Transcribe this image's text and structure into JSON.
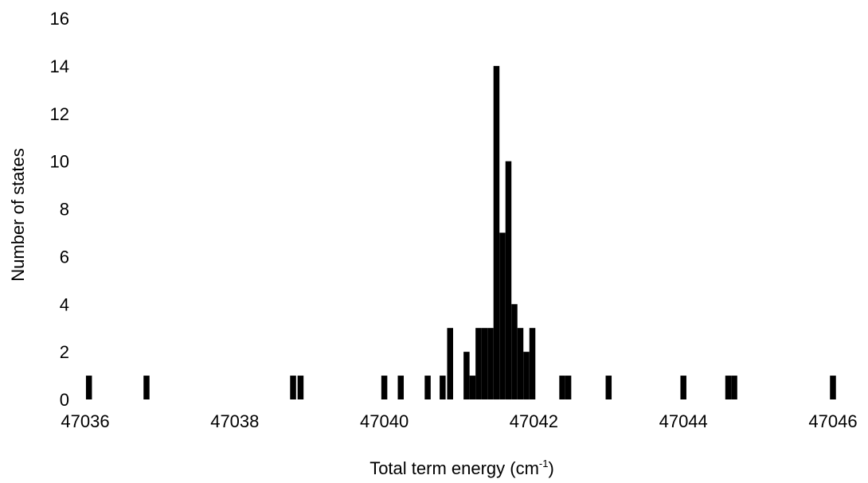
{
  "chart_data": {
    "type": "bar",
    "title": "",
    "xlabel": "Total term energy (cm",
    "xlabel_sup": "-1",
    "xlabel_close": ")",
    "ylabel": "Number of states",
    "xlim": [
      47036,
      47046
    ],
    "ylim": [
      0,
      16
    ],
    "xticks": [
      "47036",
      "47038",
      "47040",
      "47042",
      "47044",
      "47046"
    ],
    "yticks": [
      "0",
      "2",
      "4",
      "6",
      "8",
      "10",
      "12",
      "14",
      "16"
    ],
    "bar_width": 0.08,
    "bars": [
      {
        "x": 47036.05,
        "y": 1
      },
      {
        "x": 47036.82,
        "y": 1
      },
      {
        "x": 47038.78,
        "y": 1
      },
      {
        "x": 47038.88,
        "y": 1
      },
      {
        "x": 47040.0,
        "y": 1
      },
      {
        "x": 47040.22,
        "y": 1
      },
      {
        "x": 47040.58,
        "y": 1
      },
      {
        "x": 47040.78,
        "y": 1
      },
      {
        "x": 47040.88,
        "y": 3
      },
      {
        "x": 47041.1,
        "y": 2
      },
      {
        "x": 47041.18,
        "y": 1
      },
      {
        "x": 47041.26,
        "y": 3
      },
      {
        "x": 47041.34,
        "y": 3
      },
      {
        "x": 47041.42,
        "y": 3
      },
      {
        "x": 47041.5,
        "y": 14
      },
      {
        "x": 47041.58,
        "y": 7
      },
      {
        "x": 47041.66,
        "y": 10
      },
      {
        "x": 47041.74,
        "y": 4
      },
      {
        "x": 47041.82,
        "y": 3
      },
      {
        "x": 47041.9,
        "y": 2
      },
      {
        "x": 47041.98,
        "y": 3
      },
      {
        "x": 47042.38,
        "y": 1
      },
      {
        "x": 47042.46,
        "y": 1
      },
      {
        "x": 47043.0,
        "y": 1
      },
      {
        "x": 47044.0,
        "y": 1
      },
      {
        "x": 47044.6,
        "y": 1
      },
      {
        "x": 47044.68,
        "y": 1
      },
      {
        "x": 47046.0,
        "y": 1
      }
    ]
  }
}
